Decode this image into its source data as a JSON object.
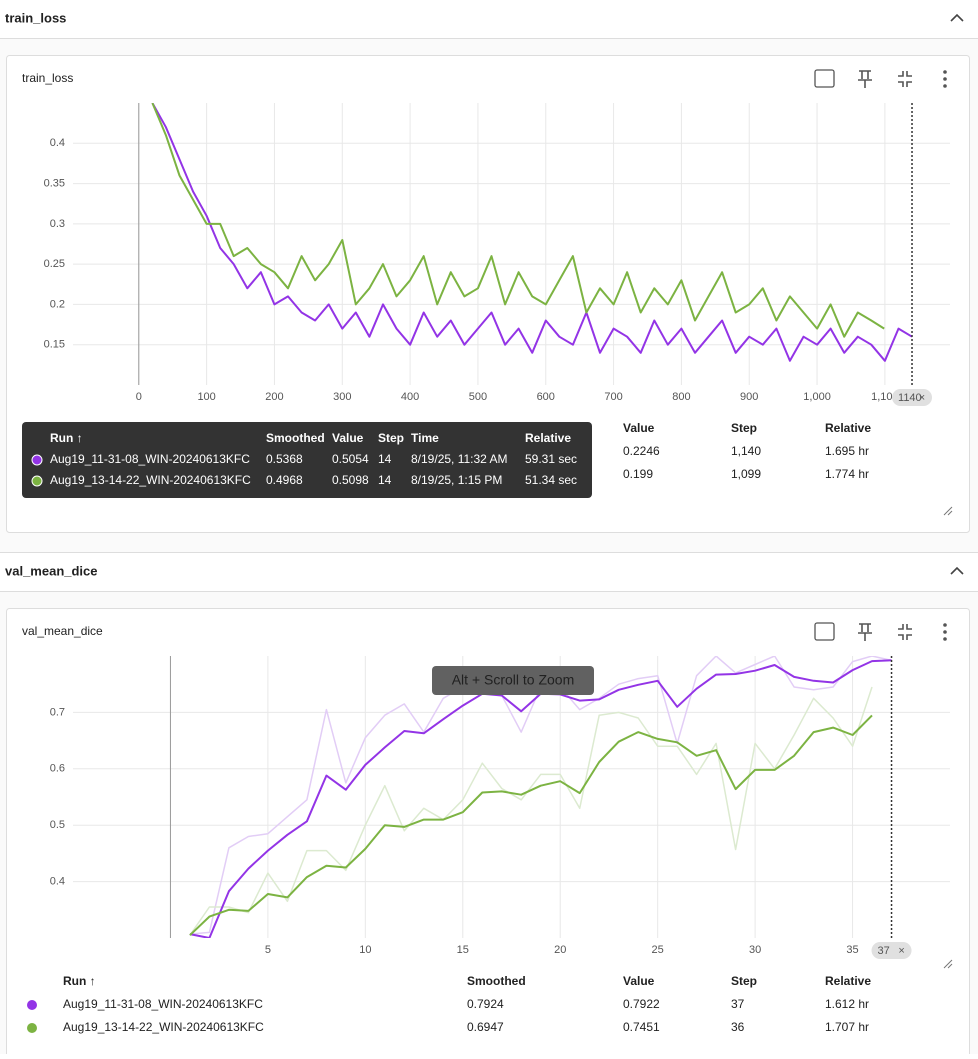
{
  "panels": [
    {
      "section_title": "train_loss",
      "card_title": "train_loss",
      "chart": {
        "type": "line",
        "xlim": [
          -97,
          1196
        ],
        "ylim": [
          0.1,
          0.45
        ],
        "xticks": [
          0,
          100,
          200,
          300,
          400,
          500,
          600,
          700,
          800,
          900,
          {
            "value": 1000,
            "label": "1,000"
          },
          {
            "value": 1100,
            "label": "1,100"
          }
        ],
        "yticks": [
          0.15,
          0.2,
          0.25,
          0.3,
          0.35,
          0.4
        ],
        "step_marker": 1140,
        "series": [
          {
            "name": "Aug19_11-31-08_WIN-20240613KFC",
            "color": "#9334e6",
            "x": [
              20,
              40,
              60,
              80,
              100,
              120,
              140,
              160,
              180,
              200,
              220,
              240,
              260,
              280,
              300,
              320,
              340,
              360,
              380,
              400,
              420,
              440,
              460,
              480,
              500,
              520,
              540,
              560,
              580,
              600,
              620,
              640,
              660,
              680,
              700,
              720,
              740,
              760,
              780,
              800,
              820,
              840,
              860,
              880,
              900,
              920,
              940,
              960,
              980,
              1000,
              1020,
              1040,
              1060,
              1080,
              1100,
              1120,
              1140
            ],
            "values": [
              0.45,
              0.42,
              0.38,
              0.34,
              0.31,
              0.27,
              0.25,
              0.22,
              0.24,
              0.2,
              0.21,
              0.19,
              0.18,
              0.2,
              0.17,
              0.19,
              0.16,
              0.2,
              0.17,
              0.15,
              0.19,
              0.16,
              0.18,
              0.15,
              0.17,
              0.19,
              0.15,
              0.17,
              0.14,
              0.18,
              0.16,
              0.15,
              0.19,
              0.14,
              0.17,
              0.16,
              0.14,
              0.18,
              0.15,
              0.17,
              0.14,
              0.16,
              0.18,
              0.14,
              0.16,
              0.15,
              0.17,
              0.13,
              0.16,
              0.15,
              0.17,
              0.14,
              0.16,
              0.15,
              0.13,
              0.17,
              0.16
            ]
          },
          {
            "name": "Aug19_13-14-22_WIN-20240613KFC",
            "color": "#7cb342",
            "x": [
              20,
              40,
              60,
              80,
              100,
              120,
              140,
              160,
              180,
              200,
              220,
              240,
              260,
              280,
              300,
              320,
              340,
              360,
              380,
              400,
              420,
              440,
              460,
              480,
              500,
              520,
              540,
              560,
              580,
              600,
              620,
              640,
              660,
              680,
              700,
              720,
              740,
              760,
              780,
              800,
              820,
              840,
              860,
              880,
              900,
              920,
              940,
              960,
              980,
              1000,
              1020,
              1040,
              1060,
              1080,
              1099
            ],
            "values": [
              0.45,
              0.41,
              0.36,
              0.33,
              0.3,
              0.3,
              0.26,
              0.27,
              0.25,
              0.24,
              0.22,
              0.26,
              0.23,
              0.25,
              0.28,
              0.2,
              0.22,
              0.25,
              0.21,
              0.23,
              0.26,
              0.2,
              0.24,
              0.21,
              0.22,
              0.26,
              0.2,
              0.24,
              0.21,
              0.2,
              0.23,
              0.26,
              0.19,
              0.22,
              0.2,
              0.24,
              0.19,
              0.22,
              0.2,
              0.23,
              0.18,
              0.21,
              0.24,
              0.19,
              0.2,
              0.22,
              0.18,
              0.21,
              0.19,
              0.17,
              0.2,
              0.16,
              0.19,
              0.18,
              0.17
            ]
          }
        ]
      },
      "table": {
        "columns": {
          "run": "Run ↑",
          "smoothed": "Smoothed",
          "value": "Value",
          "step": "Step",
          "relative": "Relative"
        },
        "rows": [
          {
            "value": "0.2246",
            "step": "1,140",
            "relative": "1.695 hr"
          },
          {
            "value": "0.199",
            "step": "1,099",
            "relative": "1.774 hr"
          }
        ]
      },
      "tooltip": {
        "columns": {
          "run": "Run ↑",
          "smoothed": "Smoothed",
          "value": "Value",
          "step": "Step",
          "time": "Time",
          "relative": "Relative"
        },
        "rows": [
          {
            "run": "Aug19_11-31-08_WIN-20240613KFC",
            "smoothed": "0.5368",
            "value": "0.5054",
            "step": "14",
            "time": "8/19/25, 11:32 AM",
            "relative": "59.31 sec"
          },
          {
            "run": "Aug19_13-14-22_WIN-20240613KFC",
            "smoothed": "0.4968",
            "value": "0.5098",
            "step": "14",
            "time": "8/19/25, 1:15 PM",
            "relative": "51.34 sec"
          }
        ]
      }
    },
    {
      "section_title": "val_mean_dice",
      "card_title": "val_mean_dice",
      "chart": {
        "type": "line",
        "xlim": [
          -5,
          40
        ],
        "ylim": [
          0.3,
          0.8
        ],
        "xticks": [
          5,
          10,
          15,
          20,
          25,
          30,
          35
        ],
        "yticks": [
          0.4,
          0.5,
          0.6,
          0.7
        ],
        "step_marker": 37,
        "overlay_hint": "Alt + Scroll to Zoom",
        "series": [
          {
            "name": "Aug19_11-31-08_WIN-20240613KFC",
            "color": "#9334e6",
            "raw_color": "#e2cdf6",
            "x": [
              1,
              2,
              3,
              4,
              5,
              6,
              7,
              8,
              9,
              10,
              11,
              12,
              13,
              14,
              15,
              16,
              17,
              18,
              19,
              20,
              21,
              22,
              23,
              24,
              25,
              26,
              27,
              28,
              29,
              30,
              31,
              32,
              33,
              34,
              35,
              36,
              37
            ],
            "values": [
              0.307,
              0.3,
              0.383,
              0.423,
              0.455,
              0.483,
              0.507,
              0.588,
              0.563,
              0.607,
              0.638,
              0.667,
              0.663,
              0.688,
              0.712,
              0.733,
              0.73,
              0.702,
              0.733,
              0.732,
              0.721,
              0.723,
              0.74,
              0.749,
              0.756,
              0.71,
              0.742,
              0.767,
              0.768,
              0.774,
              0.784,
              0.763,
              0.756,
              0.753,
              0.775,
              0.791,
              0.7924
            ],
            "raw_values": [
              0.307,
              0.31,
              0.46,
              0.48,
              0.485,
              0.515,
              0.545,
              0.705,
              0.575,
              0.655,
              0.695,
              0.715,
              0.665,
              0.725,
              0.745,
              0.74,
              0.73,
              0.665,
              0.745,
              0.745,
              0.705,
              0.725,
              0.75,
              0.76,
              0.765,
              0.645,
              0.765,
              0.8,
              0.77,
              0.785,
              0.8,
              0.745,
              0.74,
              0.745,
              0.79,
              0.8,
              0.7922
            ]
          },
          {
            "name": "Aug19_13-14-22_WIN-20240613KFC",
            "color": "#7cb342",
            "raw_color": "#dcead0",
            "x": [
              1,
              2,
              3,
              4,
              5,
              6,
              7,
              8,
              9,
              10,
              11,
              12,
              13,
              14,
              15,
              16,
              17,
              18,
              19,
              20,
              21,
              22,
              23,
              24,
              25,
              26,
              27,
              28,
              29,
              30,
              31,
              32,
              33,
              34,
              35,
              36
            ],
            "values": [
              0.305,
              0.338,
              0.35,
              0.348,
              0.378,
              0.372,
              0.408,
              0.428,
              0.425,
              0.458,
              0.5,
              0.497,
              0.51,
              0.51,
              0.523,
              0.558,
              0.56,
              0.554,
              0.57,
              0.578,
              0.557,
              0.612,
              0.648,
              0.665,
              0.653,
              0.647,
              0.623,
              0.633,
              0.564,
              0.598,
              0.598,
              0.623,
              0.665,
              0.673,
              0.66,
              0.6947
            ],
            "raw_values": [
              0.305,
              0.355,
              0.355,
              0.345,
              0.415,
              0.365,
              0.455,
              0.455,
              0.42,
              0.5,
              0.57,
              0.49,
              0.53,
              0.51,
              0.545,
              0.61,
              0.565,
              0.545,
              0.59,
              0.59,
              0.53,
              0.695,
              0.7,
              0.69,
              0.64,
              0.64,
              0.59,
              0.645,
              0.457,
              0.645,
              0.6,
              0.66,
              0.725,
              0.69,
              0.64,
              0.7451
            ]
          }
        ]
      },
      "table": {
        "columns": {
          "run": "Run ↑",
          "smoothed": "Smoothed",
          "value": "Value",
          "step": "Step",
          "relative": "Relative"
        },
        "rows": [
          {
            "run": "Aug19_11-31-08_WIN-20240613KFC",
            "smoothed": "0.7924",
            "value": "0.7922",
            "step": "37",
            "relative": "1.612 hr"
          },
          {
            "run": "Aug19_13-14-22_WIN-20240613KFC",
            "smoothed": "0.6947",
            "value": "0.7451",
            "step": "36",
            "relative": "1.707 hr"
          }
        ]
      }
    }
  ]
}
